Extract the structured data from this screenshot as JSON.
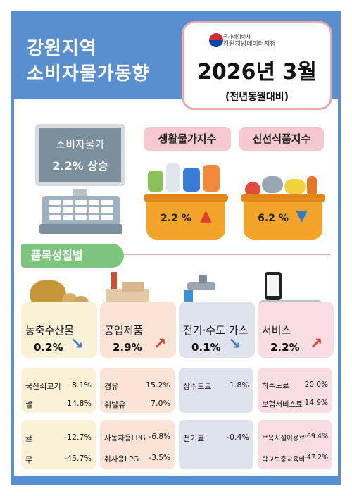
{
  "header": {
    "title_line1": "강원지역",
    "title_line2": "소비자물가동향",
    "agency_line1": "국가데이터처",
    "agency_line2": "강원지방데이터지청",
    "date": "2026년 3월",
    "date_note": "(전년동월대비)"
  },
  "summary": {
    "cpi_label": "소비자물가",
    "cpi_value": "2.2% 상승",
    "living_label": "생활물가지수",
    "living_value": "2.2 %",
    "living_direction": "up",
    "fresh_label": "신선식품지수",
    "fresh_value": "6.2 %",
    "fresh_direction": "down"
  },
  "section_label": "품목성질별",
  "categories": [
    {
      "name": "농축수산물",
      "value": "0.2%",
      "direction": "down",
      "icon": "cow-and-potato-icon"
    },
    {
      "name": "공업제품",
      "value": "2.9%",
      "direction": "up",
      "icon": "factory-icon"
    },
    {
      "name": "전기·수도·가스",
      "value": "0.1%",
      "direction": "down",
      "icon": "faucet-icon"
    },
    {
      "name": "서비스",
      "value": "2.2%",
      "direction": "up",
      "icon": "phone-and-airplane-icon"
    }
  ],
  "items": {
    "agri": {
      "up": [
        {
          "name": "국산쇠고기",
          "value": "8.1%"
        },
        {
          "name": "쌀",
          "value": "14.8%"
        }
      ],
      "down": [
        {
          "name": "귤",
          "value": "-12.7%"
        },
        {
          "name": "무",
          "value": "-45.7%"
        }
      ]
    },
    "industrial": {
      "up": [
        {
          "name": "경유",
          "value": "15.2%"
        },
        {
          "name": "휘발유",
          "value": "7.0%"
        }
      ],
      "down": [
        {
          "name": "자동차용LPG",
          "value": "-6.8%"
        },
        {
          "name": "취사용LPG",
          "value": "-3.5%"
        }
      ]
    },
    "utilities": {
      "up": [
        {
          "name": "상수도료",
          "value": "1.8%"
        }
      ],
      "down": [
        {
          "name": "전기료",
          "value": "-0.4%"
        }
      ]
    },
    "services": {
      "up": [
        {
          "name": "하수도료",
          "value": "20.0%"
        },
        {
          "name": "보험서비스료",
          "value": "14.9%"
        }
      ],
      "down": [
        {
          "name": "보육시설이용료",
          "value": "-69.4%"
        },
        {
          "name": "학교보충교육비",
          "value": "-47.2%"
        }
      ]
    }
  },
  "colors": {
    "frame": "#5a8fcf",
    "pink": "#f6c9cf",
    "green": "#7dc47d",
    "up_arrow": "#e23b2e",
    "down_arrow": "#3b78c8",
    "agri_bg": "#fbf1d6",
    "industrial_bg": "#fbe3d6",
    "utilities_bg": "#dfe3ee",
    "services_bg": "#f8dde2"
  }
}
